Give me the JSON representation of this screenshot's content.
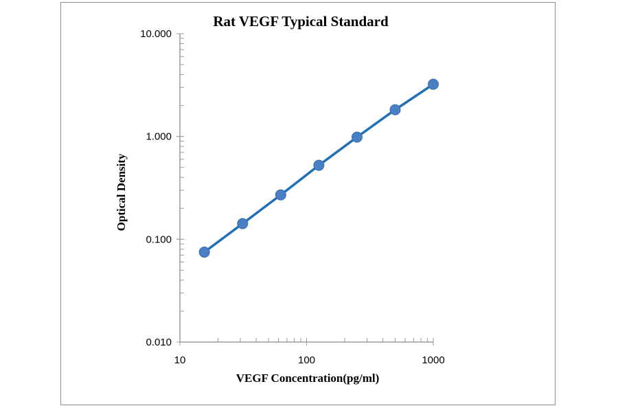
{
  "chart_data": {
    "type": "scatter",
    "title": "Rat VEGF Typical Standard",
    "xlabel": "VEGF Concentration(pg/ml)",
    "ylabel": "Optical Density",
    "x_scale": "log",
    "y_scale": "log",
    "xlim": [
      10,
      1000
    ],
    "ylim": [
      0.01,
      10
    ],
    "x_ticks": [
      "10",
      "100",
      "1000"
    ],
    "y_ticks": [
      "0.010",
      "0.100",
      "1.000",
      "10.000"
    ],
    "grid": false,
    "trendline": true,
    "colors": {
      "line": "#1f6fb5",
      "marker": "#4a7fc4"
    },
    "series": [
      {
        "x": [
          15.6,
          31.25,
          62.5,
          125,
          250,
          500,
          1000
        ],
        "y": [
          0.075,
          0.142,
          0.27,
          0.524,
          0.985,
          1.82,
          3.22
        ]
      }
    ]
  }
}
